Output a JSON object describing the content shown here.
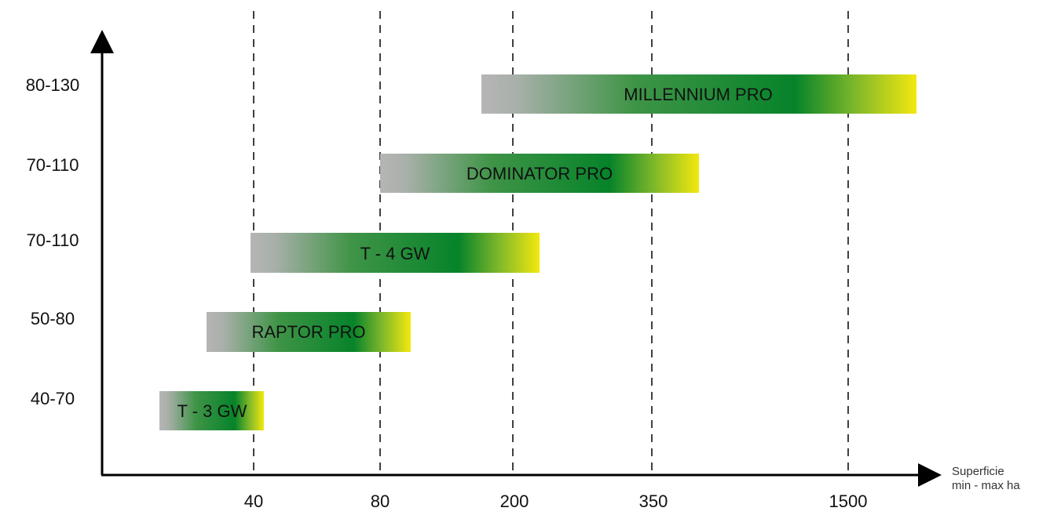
{
  "chart_data": {
    "type": "bar",
    "orientation": "horizontal-range",
    "x_ticks": [
      "40",
      "80",
      "200",
      "350",
      "1500"
    ],
    "x_title_lines": [
      "Superficie",
      "min - max ha"
    ],
    "grid": "vertical dashed lines at x ticks",
    "series": [
      {
        "name": "T - 3 GW",
        "category": "40-70",
        "x_start": "< 40",
        "x_end": "~ 40"
      },
      {
        "name": "RAPTOR PRO",
        "category": "50-80",
        "x_start": "< 40",
        "x_end": "~ 80"
      },
      {
        "name": "T - 4 GW",
        "category": "70-110",
        "x_start": "40",
        "x_end": "~ 200"
      },
      {
        "name": "DOMINATOR PRO",
        "category": "70-110",
        "x_start": "80",
        "x_end": "~ 350"
      },
      {
        "name": "MILLENNIUM PRO",
        "category": "80-130",
        "x_start": "~ 200",
        "x_end": "> 1500"
      }
    ],
    "colors": {
      "bar_start": "#b5b5b5",
      "bar_mid": "#0a8a2e",
      "bar_end": "#f3e80f",
      "axis": "#000000",
      "grid": "#111111"
    }
  }
}
